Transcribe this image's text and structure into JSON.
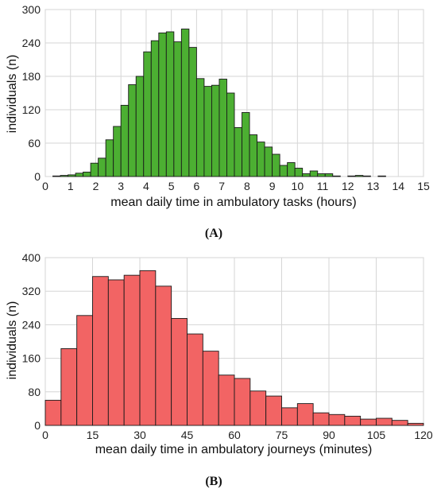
{
  "chart_data": [
    {
      "type": "bar",
      "panel": "(A)",
      "xlabel": "mean daily time in ambulatory tasks (hours)",
      "ylabel": "individuals (n)",
      "xlim": [
        0,
        15
      ],
      "ylim": [
        0,
        300
      ],
      "xticks": [
        0,
        1,
        2,
        3,
        4,
        5,
        6,
        7,
        8,
        9,
        10,
        11,
        12,
        13,
        14,
        15
      ],
      "yticks": [
        0,
        60,
        120,
        180,
        240,
        300
      ],
      "bin_width": 0.3,
      "bin_start": 0.3,
      "values": [
        1,
        2,
        3,
        6,
        8,
        24,
        33,
        66,
        90,
        128,
        165,
        180,
        224,
        244,
        258,
        260,
        242,
        265,
        232,
        176,
        162,
        164,
        175,
        150,
        88,
        115,
        75,
        62,
        53,
        40,
        20,
        25,
        15,
        5,
        10,
        5,
        5,
        1,
        0,
        1,
        2,
        1,
        0,
        1,
        0,
        0
      ],
      "color": "#4caf32",
      "grid": true
    },
    {
      "type": "bar",
      "panel": "(B)",
      "xlabel": "mean daily time in ambulatory journeys (minutes)",
      "ylabel": "individuals (n)",
      "xlim": [
        0,
        120
      ],
      "ylim": [
        0,
        400
      ],
      "xticks": [
        0,
        15,
        30,
        45,
        60,
        75,
        90,
        105,
        120
      ],
      "yticks": [
        0,
        80,
        160,
        240,
        320,
        400
      ],
      "bin_width": 5,
      "bin_start": 0,
      "values": [
        60,
        183,
        262,
        355,
        347,
        358,
        369,
        332,
        255,
        218,
        177,
        120,
        112,
        82,
        70,
        42,
        52,
        30,
        26,
        22,
        15,
        17,
        12,
        5
      ],
      "color": "#f26464",
      "grid": true
    }
  ]
}
